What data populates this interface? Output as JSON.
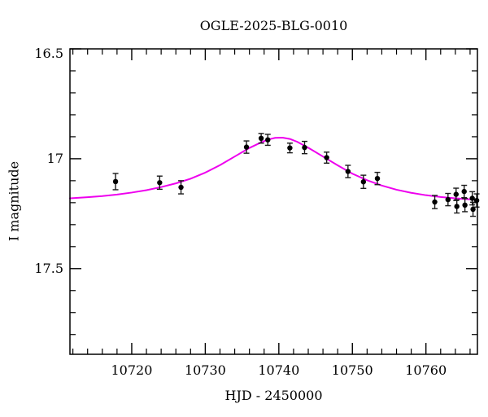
{
  "chart_data": {
    "type": "scatter",
    "title": "OGLE-2025-BLG-0010",
    "xlabel": "HJD - 2450000",
    "ylabel": "I magnitude",
    "xlim": [
      10711.6,
      10767.0
    ],
    "ylim": [
      17.89,
      16.5
    ],
    "y_axis_inverted": true,
    "grid": false,
    "legend": null,
    "x_major_ticks": [
      {
        "value": 10720,
        "label": "10720"
      },
      {
        "value": 10730,
        "label": "10730"
      },
      {
        "value": 10740,
        "label": "10740"
      },
      {
        "value": 10750,
        "label": "10750"
      },
      {
        "value": 10760,
        "label": "10760"
      }
    ],
    "x_minor_step": 2,
    "y_major_ticks": [
      {
        "value": 16.5,
        "label": "16.5"
      },
      {
        "value": 17.0,
        "label": "17"
      },
      {
        "value": 17.5,
        "label": "17.5"
      }
    ],
    "y_minor_step": 0.1,
    "colors": {
      "points": "#000000",
      "error_bars": "#1a1a1a",
      "model_curve": "#ee00ee",
      "frame": "#000000",
      "background": "#ffffff"
    },
    "points": [
      {
        "t": 10717.8,
        "mag": 17.104,
        "err": 0.037
      },
      {
        "t": 10723.8,
        "mag": 17.109,
        "err": 0.03
      },
      {
        "t": 10726.7,
        "mag": 17.13,
        "err": 0.03
      },
      {
        "t": 10735.6,
        "mag": 16.947,
        "err": 0.028
      },
      {
        "t": 10737.6,
        "mag": 16.907,
        "err": 0.022
      },
      {
        "t": 10738.5,
        "mag": 16.914,
        "err": 0.025
      },
      {
        "t": 10741.5,
        "mag": 16.951,
        "err": 0.022
      },
      {
        "t": 10743.5,
        "mag": 16.949,
        "err": 0.028
      },
      {
        "t": 10746.5,
        "mag": 16.995,
        "err": 0.025
      },
      {
        "t": 10749.4,
        "mag": 17.058,
        "err": 0.028
      },
      {
        "t": 10751.5,
        "mag": 17.105,
        "err": 0.03
      },
      {
        "t": 10753.4,
        "mag": 17.09,
        "err": 0.028
      },
      {
        "t": 10761.2,
        "mag": 17.197,
        "err": 0.03
      },
      {
        "t": 10763.0,
        "mag": 17.186,
        "err": 0.028
      },
      {
        "t": 10764.1,
        "mag": 17.162,
        "err": 0.028
      },
      {
        "t": 10764.2,
        "mag": 17.217,
        "err": 0.03
      },
      {
        "t": 10765.2,
        "mag": 17.149,
        "err": 0.028
      },
      {
        "t": 10765.3,
        "mag": 17.211,
        "err": 0.03
      },
      {
        "t": 10766.3,
        "mag": 17.18,
        "err": 0.03
      },
      {
        "t": 10766.4,
        "mag": 17.23,
        "err": 0.032
      },
      {
        "t": 10766.9,
        "mag": 17.19,
        "err": 0.03
      }
    ],
    "model_curve": [
      [
        10711.6,
        17.18
      ],
      [
        10714.0,
        17.175
      ],
      [
        10716.0,
        17.17
      ],
      [
        10718.0,
        17.163
      ],
      [
        10720.0,
        17.154
      ],
      [
        10722.0,
        17.143
      ],
      [
        10724.0,
        17.129
      ],
      [
        10726.0,
        17.112
      ],
      [
        10728.0,
        17.091
      ],
      [
        10730.0,
        17.063
      ],
      [
        10732.0,
        17.029
      ],
      [
        10734.0,
        16.99
      ],
      [
        10736.0,
        16.951
      ],
      [
        10737.5,
        16.927
      ],
      [
        10738.5,
        16.913
      ],
      [
        10739.5,
        16.905
      ],
      [
        10740.5,
        16.904
      ],
      [
        10741.5,
        16.91
      ],
      [
        10742.5,
        16.923
      ],
      [
        10744.0,
        16.95
      ],
      [
        10746.0,
        16.99
      ],
      [
        10748.0,
        17.03
      ],
      [
        10750.0,
        17.068
      ],
      [
        10752.0,
        17.098
      ],
      [
        10754.0,
        17.122
      ],
      [
        10756.0,
        17.141
      ],
      [
        10758.0,
        17.155
      ],
      [
        10760.0,
        17.166
      ],
      [
        10762.0,
        17.174
      ],
      [
        10764.0,
        17.18
      ],
      [
        10766.0,
        17.185
      ],
      [
        10767.0,
        17.187
      ]
    ]
  }
}
